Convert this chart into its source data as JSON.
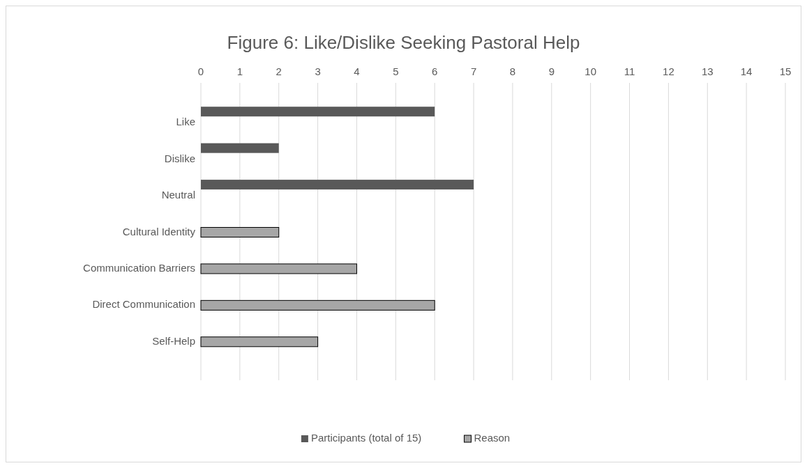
{
  "chart_data": {
    "type": "bar",
    "orientation": "horizontal",
    "title": "Figure 6: Like/Dislike Seeking Pastoral Help",
    "categories": [
      "Like",
      "Dislike",
      "Neutral",
      "Cultural Identity",
      "Communication Barriers",
      "Direct Communication",
      "Self-Help"
    ],
    "series": [
      {
        "name": "Participants (total of 15)",
        "color": "#595959",
        "values": [
          6,
          2,
          7,
          null,
          null,
          null,
          null
        ]
      },
      {
        "name": "Reason",
        "color": "#a6a6a6",
        "values": [
          null,
          null,
          null,
          2,
          4,
          6,
          3
        ]
      }
    ],
    "xlim": [
      0,
      15
    ],
    "xticks": [
      0,
      1,
      2,
      3,
      4,
      5,
      6,
      7,
      8,
      9,
      10,
      11,
      12,
      13,
      14,
      15
    ],
    "grid": "x",
    "legend": "bottom"
  }
}
